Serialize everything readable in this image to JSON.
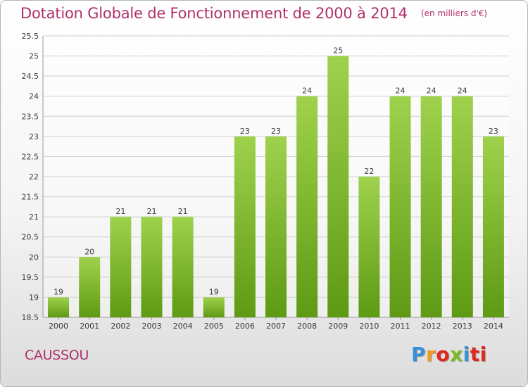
{
  "header": {
    "title": "Dotation Globale de Fonctionnement de 2000 à 2014",
    "unit": "(en milliers d'€)"
  },
  "location": "CAUSSOU",
  "logo": {
    "letters": [
      "P",
      "r",
      "o",
      "x",
      "i",
      "ti"
    ],
    "text": "Proxiti"
  },
  "colors": {
    "title": "#b0306a",
    "bar_top": "#9fd24c",
    "bar_bottom": "#5e9a14",
    "grid": "#cfcfcf"
  },
  "chart_data": {
    "type": "bar",
    "title": "Dotation Globale de Fonctionnement de 2000 à 2014",
    "xlabel": "",
    "ylabel": "",
    "categories": [
      "2000",
      "2001",
      "2002",
      "2003",
      "2004",
      "2005",
      "2006",
      "2007",
      "2008",
      "2009",
      "2010",
      "2011",
      "2012",
      "2013",
      "2014"
    ],
    "values": [
      19,
      20,
      21,
      21,
      21,
      19,
      23,
      23,
      24,
      25,
      22,
      24,
      24,
      24,
      23
    ],
    "ylim": [
      18.5,
      25.5
    ],
    "yticks": [
      18.5,
      19,
      19.5,
      20,
      20.5,
      21,
      21.5,
      22,
      22.5,
      23,
      23.5,
      24,
      24.5,
      25,
      25.5
    ],
    "ytick_labels": [
      "18.5",
      "19",
      "19.5",
      "20",
      "20.5",
      "21",
      "21.5",
      "22",
      "22.5",
      "23",
      "23.5",
      "24",
      "24.5",
      "25",
      "25.5"
    ],
    "grid": true,
    "legend": "none"
  }
}
